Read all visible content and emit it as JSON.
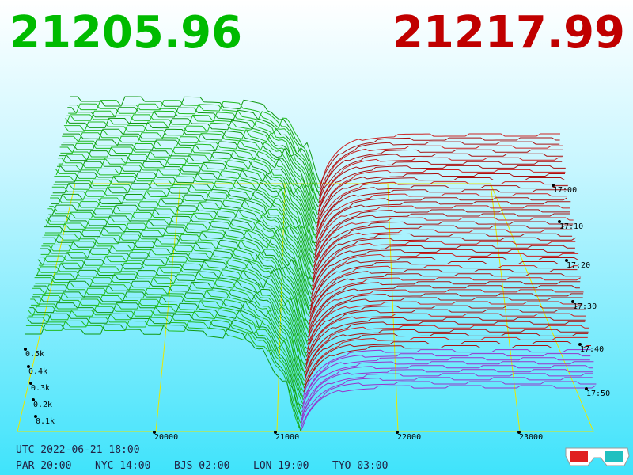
{
  "header": {
    "bid_price": "21205.96",
    "ask_price": "21217.99"
  },
  "axes": {
    "volume_labels": [
      "0.5k",
      "0.4k",
      "0.3k",
      "0.2k",
      "0.1k"
    ],
    "price_labels": [
      "20000",
      "21000",
      "22000",
      "23000"
    ],
    "time_labels": [
      "17:00",
      "17:10",
      "17:20",
      "17:30",
      "17:40",
      "17:50"
    ]
  },
  "footer": {
    "utc": "UTC 2022-06-21 18:00",
    "clocks": [
      "PAR 20:00",
      "NYC 14:00",
      "BJS 02:00",
      "LON 19:00",
      "TYO 03:00"
    ]
  }
}
